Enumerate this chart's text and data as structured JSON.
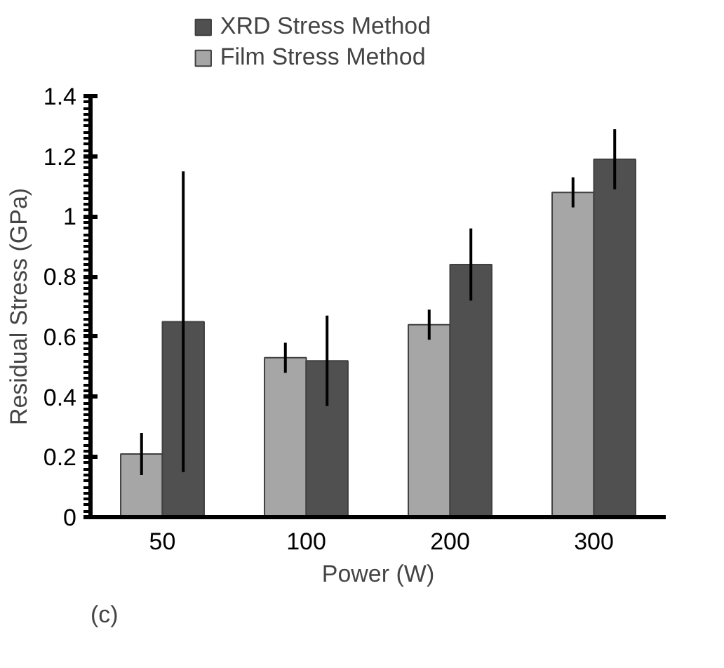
{
  "chart_data": {
    "type": "bar",
    "xlabel": "Power (W)",
    "ylabel": "Residual Stress (GPa)",
    "categories": [
      "50",
      "100",
      "200",
      "300"
    ],
    "series": [
      {
        "name": "Film Stress Method",
        "color": "#a6a6a6",
        "values": [
          0.21,
          0.53,
          0.64,
          1.08
        ],
        "errors": [
          0.07,
          0.05,
          0.05,
          0.05
        ]
      },
      {
        "name": "XRD Stress Method",
        "color": "#505050",
        "values": [
          0.65,
          0.52,
          0.84,
          1.19
        ],
        "errors": [
          0.5,
          0.15,
          0.12,
          0.1
        ]
      }
    ],
    "ylim": [
      0,
      1.4
    ],
    "yticks": [
      0,
      0.2,
      0.4,
      0.6,
      0.8,
      1,
      1.2,
      1.4
    ],
    "legend": "top",
    "grid": false,
    "annotations": [
      "(c)"
    ]
  }
}
